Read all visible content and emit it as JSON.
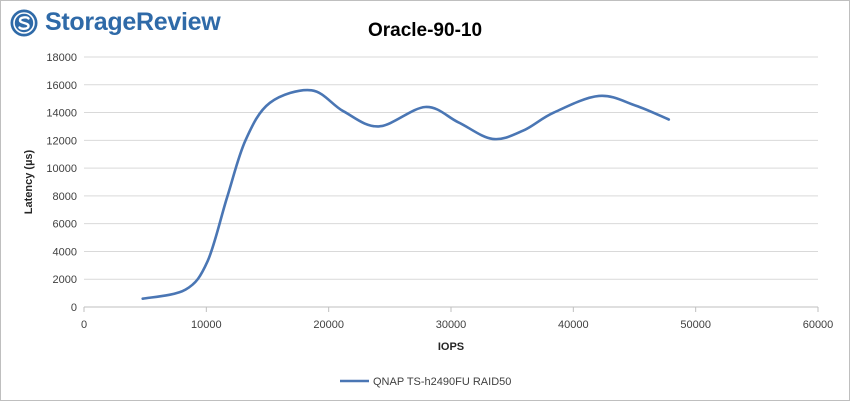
{
  "brand": {
    "name": "StorageReview",
    "logo_icon": "storagereview-logo-icon",
    "color": "#2f6aa8"
  },
  "chart_data": {
    "type": "line",
    "title": "Oracle-90-10",
    "xlabel": "IOPS",
    "ylabel": "Latency (µs)",
    "xlim": [
      0,
      60000
    ],
    "ylim": [
      0,
      18000
    ],
    "x_ticks": [
      0,
      10000,
      20000,
      30000,
      40000,
      50000,
      60000
    ],
    "y_ticks": [
      0,
      2000,
      4000,
      6000,
      8000,
      10000,
      12000,
      14000,
      16000,
      18000
    ],
    "grid": "horizontal",
    "legend_position": "bottom",
    "series": [
      {
        "name": "QNAP TS-h2490FU RAID50",
        "color": "#4a76b4",
        "x": [
          4800,
          8300,
          10100,
          11700,
          13200,
          15200,
          18600,
          21200,
          24100,
          27900,
          30600,
          33400,
          35900,
          38400,
          42100,
          45100,
          47800
        ],
        "y": [
          600,
          1250,
          3300,
          7900,
          12000,
          14700,
          15600,
          14100,
          13000,
          14400,
          13300,
          12100,
          12700,
          14000,
          15200,
          14500,
          13500
        ]
      }
    ]
  }
}
